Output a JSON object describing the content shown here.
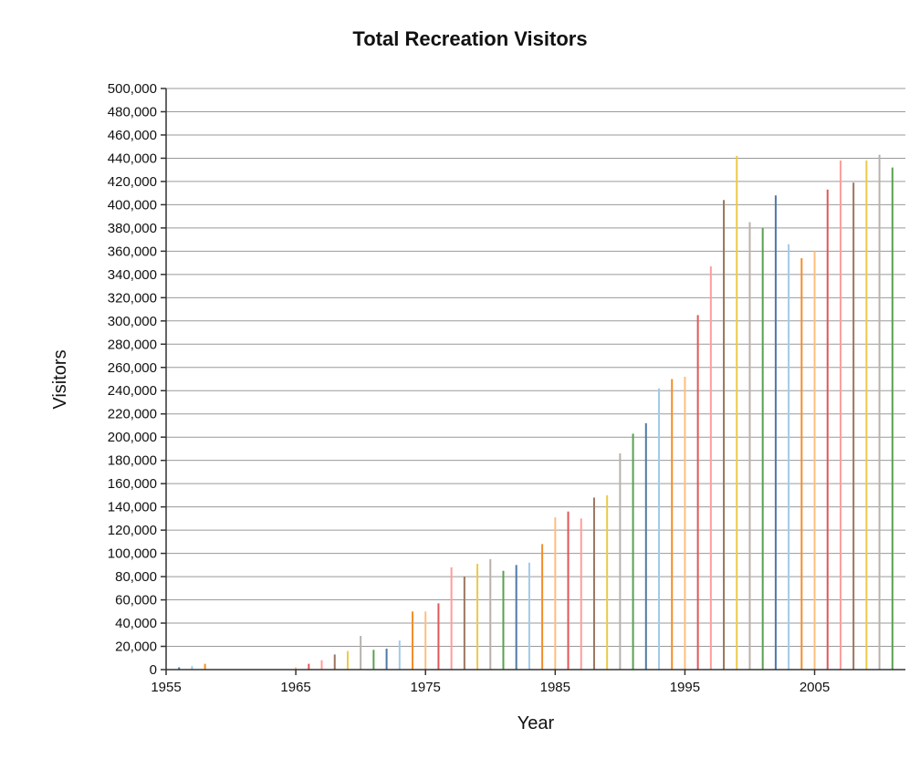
{
  "chart_data": {
    "type": "bar",
    "title": "Total Recreation Visitors",
    "xlabel": "Year",
    "ylabel": "Visitors",
    "xlim": [
      1955,
      2012
    ],
    "ylim": [
      0,
      500000
    ],
    "grid": true,
    "y_ticks": [
      0,
      20000,
      40000,
      60000,
      80000,
      100000,
      120000,
      140000,
      160000,
      180000,
      200000,
      220000,
      240000,
      260000,
      280000,
      300000,
      320000,
      340000,
      360000,
      380000,
      400000,
      420000,
      440000,
      460000,
      480000,
      500000
    ],
    "y_tick_labels": [
      "0",
      "20,000",
      "40,000",
      "60,000",
      "80,000",
      "100,000",
      "120,000",
      "140,000",
      "160,000",
      "180,000",
      "200,000",
      "220,000",
      "240,000",
      "260,000",
      "280,000",
      "300,000",
      "320,000",
      "340,000",
      "360,000",
      "380,000",
      "400,000",
      "420,000",
      "440,000",
      "460,000",
      "480,000",
      "500,000"
    ],
    "x_ticks": [
      1955,
      1965,
      1975,
      1985,
      1995,
      2005
    ],
    "x_tick_labels": [
      "1955",
      "1965",
      "1975",
      "1985",
      "1995",
      "2005"
    ],
    "palette": [
      "#4e79a7",
      "#a0cbe8",
      "#f28e2b",
      "#ffbe7d",
      "#e15759",
      "#ff9d9a",
      "#9c755f",
      "#edc948",
      "#bab0ac",
      "#59a14f"
    ],
    "x": [
      1956,
      1957,
      1958,
      1965,
      1966,
      1967,
      1968,
      1969,
      1970,
      1971,
      1972,
      1973,
      1974,
      1975,
      1976,
      1977,
      1978,
      1979,
      1980,
      1981,
      1982,
      1983,
      1984,
      1985,
      1986,
      1987,
      1988,
      1989,
      1990,
      1991,
      1992,
      1993,
      1994,
      1995,
      1996,
      1997,
      1998,
      1999,
      2000,
      2001,
      2002,
      2003,
      2004,
      2005,
      2006,
      2007,
      2008,
      2009,
      2010,
      2011
    ],
    "values": [
      2000,
      3000,
      5000,
      2000,
      5000,
      8000,
      13000,
      16000,
      29000,
      17000,
      18000,
      25000,
      50000,
      50000,
      57000,
      88000,
      80000,
      91000,
      95000,
      85000,
      90000,
      92000,
      108000,
      131000,
      136000,
      130000,
      148000,
      150000,
      186000,
      203000,
      212000,
      242000,
      250000,
      252000,
      305000,
      347000,
      404000,
      442000,
      385000,
      380000,
      408000,
      366000,
      354000,
      360000,
      413000,
      438000,
      419000,
      438000,
      443000,
      432000
    ]
  }
}
